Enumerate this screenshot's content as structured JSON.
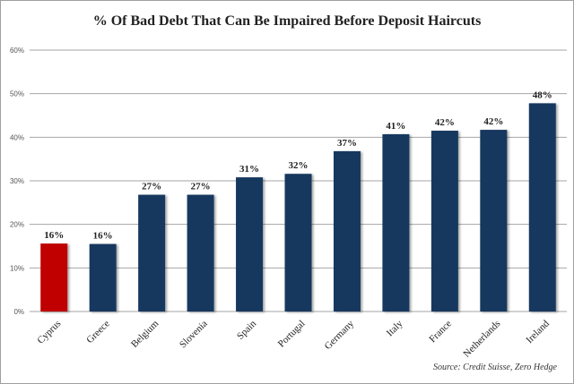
{
  "chart_data": {
    "type": "bar",
    "title": "% Of Bad Debt That Can Be Impaired Before Deposit Haircuts",
    "xlabel": "",
    "ylabel": "",
    "ylim": [
      0,
      60
    ],
    "yticks": [
      "0%",
      "10%",
      "20%",
      "30%",
      "40%",
      "50%",
      "60%"
    ],
    "yticks_values": [
      0,
      10,
      20,
      30,
      40,
      50,
      60
    ],
    "grid": true,
    "categories": [
      "Cyprus",
      "Greece",
      "Belgium",
      "Slovenia",
      "Spain",
      "Portugal",
      "Germany",
      "Italy",
      "France",
      "Netherlands",
      "Ireland"
    ],
    "values": [
      15.6,
      15.5,
      26.8,
      26.8,
      30.8,
      31.6,
      36.8,
      40.7,
      41.5,
      41.7,
      47.8
    ],
    "data_labels": [
      "16%",
      "16%",
      "27%",
      "27%",
      "31%",
      "32%",
      "37%",
      "41%",
      "42%",
      "42%",
      "48%"
    ],
    "highlight_category": "Cyprus",
    "colors": {
      "bar": "#17375e",
      "highlight": "#c00000",
      "grid": "#a6a6a6"
    },
    "source": "Source: Credit Suisse, Zero Hedge"
  }
}
